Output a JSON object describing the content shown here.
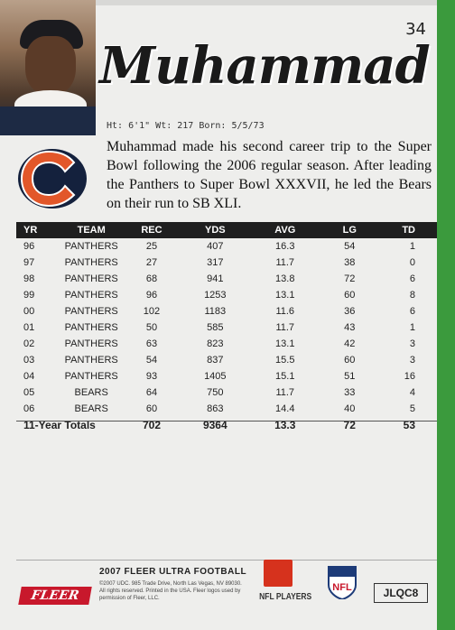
{
  "card": {
    "number": "34",
    "name": "Muhammad",
    "bio": "Ht: 6'1\"  Wt: 217  Born: 5/5/73",
    "description": "Muhammad made his second career trip to the Super Bowl following the 2006 regular season. After leading the Panthers to Super Bowl XXXVII, he led the Bears on their run to SB XLI.",
    "team_logo_color": "#e2572a",
    "team_logo_outline": "#14213d"
  },
  "stats": {
    "headers": [
      "YR",
      "TEAM",
      "REC",
      "YDS",
      "AVG",
      "LG",
      "TD"
    ],
    "rows": [
      [
        "96",
        "PANTHERS",
        "25",
        "407",
        "16.3",
        "54",
        "1"
      ],
      [
        "97",
        "PANTHERS",
        "27",
        "317",
        "11.7",
        "38",
        "0"
      ],
      [
        "98",
        "PANTHERS",
        "68",
        "941",
        "13.8",
        "72",
        "6"
      ],
      [
        "99",
        "PANTHERS",
        "96",
        "1253",
        "13.1",
        "60",
        "8"
      ],
      [
        "00",
        "PANTHERS",
        "102",
        "1183",
        "11.6",
        "36",
        "6"
      ],
      [
        "01",
        "PANTHERS",
        "50",
        "585",
        "11.7",
        "43",
        "1"
      ],
      [
        "02",
        "PANTHERS",
        "63",
        "823",
        "13.1",
        "42",
        "3"
      ],
      [
        "03",
        "PANTHERS",
        "54",
        "837",
        "15.5",
        "60",
        "3"
      ],
      [
        "04",
        "PANTHERS",
        "93",
        "1405",
        "15.1",
        "51",
        "16"
      ],
      [
        "05",
        "BEARS",
        "64",
        "750",
        "11.7",
        "33",
        "4"
      ],
      [
        "06",
        "BEARS",
        "60",
        "863",
        "14.4",
        "40",
        "5"
      ]
    ],
    "totals": [
      "11-Year Totals",
      "702",
      "9364",
      "13.3",
      "72",
      "53"
    ]
  },
  "footer": {
    "brand": "FLEER",
    "product": "2007 FLEER ULTRA FOOTBALL",
    "legal": "©2007 UDC. 985 Trade Drive, North Las Vegas, NV 89030. All rights reserved. Printed in the USA. Fleer logos used by permission of Fleer, LLC.",
    "players_label": "NFL PLAYERS",
    "nfl_label": "NFL",
    "code": "JLQC8"
  },
  "colors": {
    "accent_green": "#3b9a3d",
    "fleer_red": "#c8182c",
    "header_bg": "#1f1f1f"
  }
}
